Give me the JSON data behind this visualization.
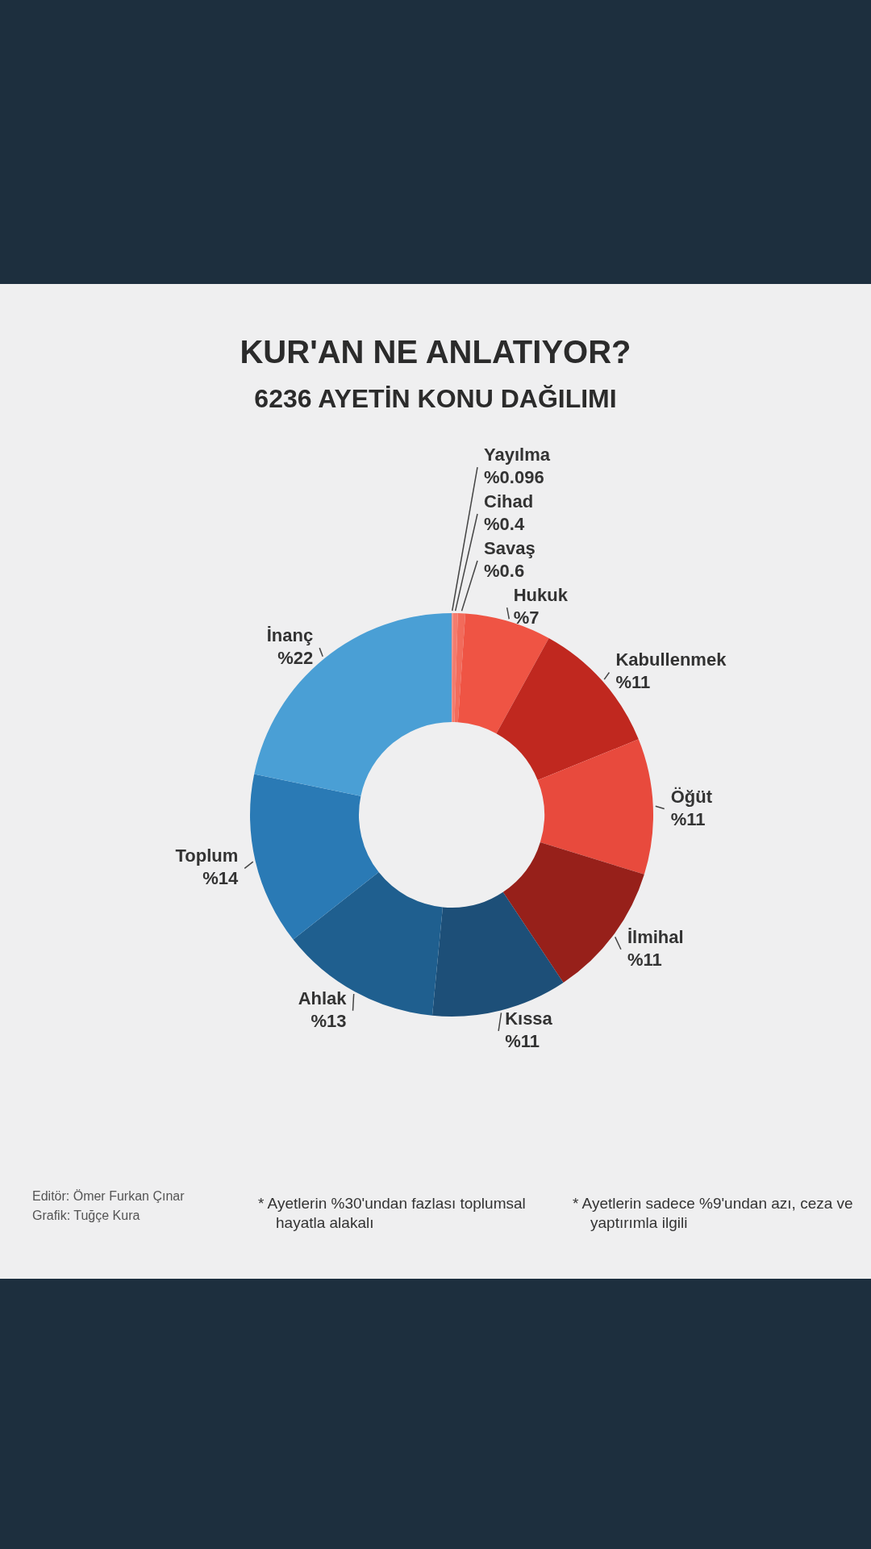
{
  "chart_data": {
    "type": "donut",
    "title": "KUR'AN NE ANLATIYOR?",
    "subtitle": "6236 AYETİN KONU DAĞILIMI",
    "categories": [
      "Yayılma",
      "Cihad",
      "Savaş",
      "Hukuk",
      "Kabullenmek",
      "Öğüt",
      "İlmihal",
      "Kıssa",
      "Ahlak",
      "Toplum",
      "İnanç"
    ],
    "values": [
      0.096,
      0.4,
      0.6,
      7,
      11,
      11,
      11,
      11,
      13,
      14,
      22
    ],
    "value_labels": [
      "%0.096",
      "%0.4",
      "%0.6",
      "%7",
      "%11",
      "%11",
      "%11",
      "%11",
      "%13",
      "%14",
      "%22"
    ],
    "colors": [
      "#f7948a",
      "#f47c6e",
      "#f26b5b",
      "#ef5444",
      "#c0281f",
      "#e84a3d",
      "#97201a",
      "#1d4f78",
      "#1f5f8f",
      "#2a7ab5",
      "#4a9fd5"
    ],
    "annotations": [
      "Editör: Ömer Furkan Çınar",
      "Grafik: Tuğçe Kura",
      "* Ayetlerin %30'undan fazlası toplumsal hayatla alakalı",
      "* Ayetlerin sadece %9'undan azı, ceza ve yaptırımla ilgili"
    ]
  }
}
